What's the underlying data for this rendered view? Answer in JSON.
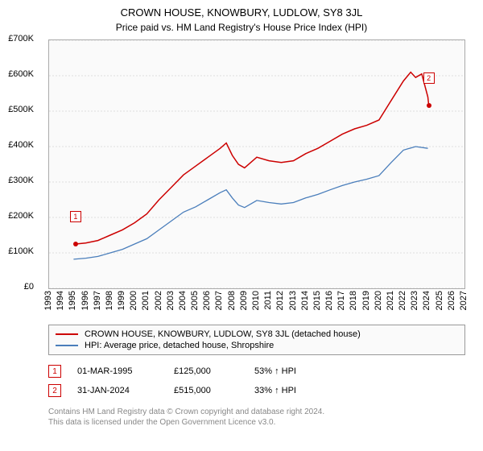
{
  "title": "CROWN HOUSE, KNOWBURY, LUDLOW, SY8 3JL",
  "subtitle": "Price paid vs. HM Land Registry's House Price Index (HPI)",
  "chart": {
    "type": "line",
    "background_color": "#fafafa",
    "grid_color": "#dddddd",
    "axis_color": "#aaaaaa",
    "x": {
      "min": 1993,
      "max": 2027,
      "step": 1,
      "ticks": [
        "1993",
        "1994",
        "1995",
        "1996",
        "1997",
        "1998",
        "1999",
        "2000",
        "2001",
        "2002",
        "2003",
        "2004",
        "2005",
        "2006",
        "2007",
        "2008",
        "2009",
        "2010",
        "2011",
        "2012",
        "2013",
        "2014",
        "2015",
        "2016",
        "2017",
        "2018",
        "2019",
        "2020",
        "2021",
        "2022",
        "2023",
        "2024",
        "2025",
        "2026",
        "2027"
      ],
      "tick_fontsize": 11,
      "tick_rotation": -90
    },
    "y": {
      "min": 0,
      "max": 700000,
      "step": 100000,
      "ticks": [
        "£0",
        "£100K",
        "£200K",
        "£300K",
        "£400K",
        "£500K",
        "£600K",
        "£700K"
      ],
      "tick_fontsize": 11
    },
    "series": [
      {
        "name": "price_paid",
        "label": "CROWN HOUSE, KNOWBURY, LUDLOW, SY8 3JL (detached house)",
        "color": "#cc0000",
        "line_width": 1.5,
        "x": [
          1995.17,
          1996,
          1997,
          1998,
          1999,
          2000,
          2001,
          2002,
          2003,
          2004,
          2005,
          2006,
          2007,
          2007.5,
          2008,
          2008.5,
          2009,
          2010,
          2011,
          2012,
          2013,
          2014,
          2015,
          2016,
          2017,
          2018,
          2019,
          2020,
          2021,
          2022,
          2022.6,
          2023,
          2023.5,
          2024,
          2024.08
        ],
        "y": [
          125000,
          128000,
          135000,
          150000,
          165000,
          185000,
          210000,
          250000,
          285000,
          320000,
          345000,
          370000,
          395000,
          410000,
          375000,
          350000,
          340000,
          370000,
          360000,
          355000,
          360000,
          380000,
          395000,
          415000,
          435000,
          450000,
          460000,
          475000,
          530000,
          585000,
          610000,
          595000,
          605000,
          540000,
          515000
        ]
      },
      {
        "name": "hpi",
        "label": "HPI: Average price, detached house, Shropshire",
        "color": "#4a7ebb",
        "line_width": 1.3,
        "x": [
          1995,
          1996,
          1997,
          1998,
          1999,
          2000,
          2001,
          2002,
          2003,
          2004,
          2005,
          2006,
          2007,
          2007.5,
          2008,
          2008.5,
          2009,
          2010,
          2011,
          2012,
          2013,
          2014,
          2015,
          2016,
          2017,
          2018,
          2019,
          2020,
          2021,
          2022,
          2023,
          2024
        ],
        "y": [
          82000,
          85000,
          90000,
          100000,
          110000,
          125000,
          140000,
          165000,
          190000,
          215000,
          230000,
          250000,
          270000,
          278000,
          255000,
          235000,
          228000,
          248000,
          242000,
          238000,
          242000,
          255000,
          265000,
          278000,
          290000,
          300000,
          308000,
          318000,
          355000,
          390000,
          400000,
          395000
        ]
      }
    ],
    "sale_markers": [
      {
        "n": "1",
        "x": 1995.17,
        "y": 125000,
        "box_offset_y": -34
      },
      {
        "n": "2",
        "x": 2024.08,
        "y": 515000,
        "box_offset_y": -34
      }
    ]
  },
  "legend": {
    "border_color": "#999999",
    "background_color": "#fafafa",
    "fontsize": 11,
    "items": [
      {
        "color": "#cc0000",
        "thickness": 2,
        "label": "CROWN HOUSE, KNOWBURY, LUDLOW, SY8 3JL (detached house)"
      },
      {
        "color": "#4a7ebb",
        "thickness": 1.3,
        "label": "HPI: Average price, detached house, Shropshire"
      }
    ]
  },
  "sales": [
    {
      "n": "1",
      "date": "01-MAR-1995",
      "price": "£125,000",
      "hpi_diff": "53% ↑ HPI"
    },
    {
      "n": "2",
      "date": "31-JAN-2024",
      "price": "£515,000",
      "hpi_diff": "33% ↑ HPI"
    }
  ],
  "attribution": {
    "line1": "Contains HM Land Registry data © Crown copyright and database right 2024.",
    "line2": "This data is licensed under the Open Government Licence v3.0."
  }
}
